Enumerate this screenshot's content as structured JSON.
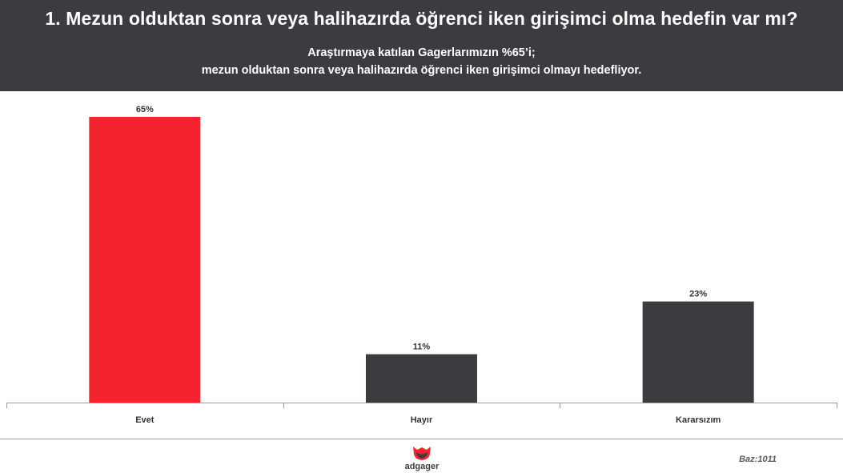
{
  "header": {
    "title": "1. Mezun olduktan sonra veya halihazırda öğrenci iken girişimci olma hedefin var mı?",
    "subtitle_line1": "Araştırmaya katılan Gagerlarımızın %65’i;",
    "subtitle_line2": "mezun olduktan sonra veya halihazırda öğrenci iken girişimci olmayı hedefliyor."
  },
  "chart_data": {
    "type": "bar",
    "categories": [
      "Evet",
      "Hayır",
      "Kararsızım"
    ],
    "values": [
      65,
      11,
      23
    ],
    "value_labels": [
      "65%",
      "11%",
      "23%"
    ],
    "bar_colors": [
      "#f5232e",
      "#3d3b40",
      "#3d3b40"
    ],
    "ylim": [
      0,
      65
    ],
    "grid": false,
    "legend": "none"
  },
  "footer": {
    "logo_text": "adgager",
    "logo_icon": "adgager-logo-icon",
    "base": "Baz:1011"
  },
  "colors": {
    "header_bg": "#3d3b40",
    "accent": "#f5232e",
    "bar_dark": "#3d3b40"
  }
}
